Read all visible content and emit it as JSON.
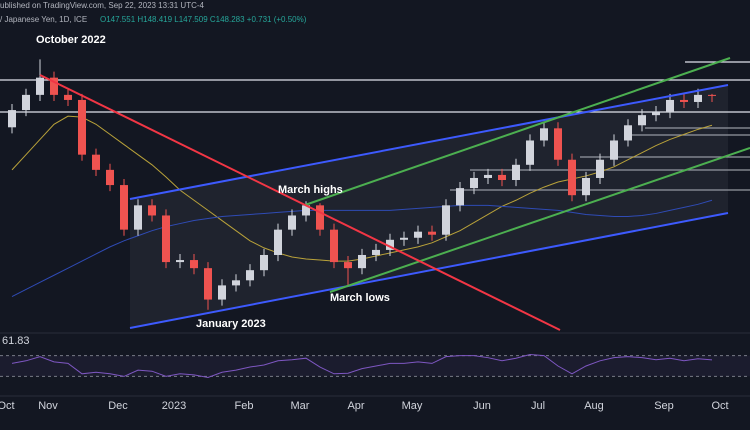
{
  "header": {
    "source": "ublished on TradingView.com, Sep 22, 2023 13:31 UTC-4",
    "symbol": "/ Japanese Yen, 1D, ICE",
    "ohlc": "O147.551 H148.419 L147.509 C148.283 +0.731 (+0.50%)"
  },
  "chart_data": {
    "type": "candlestick",
    "categories": [
      "Oct",
      null,
      null,
      "Nov",
      null,
      null,
      null,
      null,
      "Dec",
      null,
      null,
      null,
      "2023",
      null,
      null,
      null,
      null,
      "Feb",
      null,
      null,
      null,
      "Mar",
      null,
      null,
      null,
      "Apr",
      null,
      null,
      null,
      "May",
      null,
      null,
      null,
      null,
      "Jun",
      null,
      null,
      null,
      "Jul",
      null,
      null,
      null,
      "Aug",
      null,
      null,
      null,
      null,
      "Sep",
      null,
      null,
      null,
      "Oct",
      null
    ],
    "open": [
      145.2,
      146.9,
      148.4,
      150.1,
      148.4,
      147.9,
      142.5,
      141.0,
      139.5,
      135.1,
      137.5,
      136.5,
      131.9,
      132.1,
      131.3,
      128.2,
      129.6,
      130.1,
      131.1,
      132.6,
      135.1,
      136.5,
      137.5,
      135.1,
      131.9,
      131.3,
      132.6,
      133.1,
      134.1,
      134.3,
      134.9,
      134.6,
      137.5,
      139.2,
      140.2,
      140.5,
      140.0,
      141.5,
      143.9,
      145.1,
      142.0,
      138.5,
      140.2,
      142.0,
      143.9,
      145.4,
      146.4,
      146.7,
      147.9,
      147.7,
      148.4,
      null,
      null
    ],
    "high": [
      147.5,
      149.0,
      151.9,
      150.7,
      149.0,
      148.5,
      143.1,
      141.6,
      140.1,
      138.1,
      138.1,
      137.1,
      132.7,
      132.7,
      131.9,
      130.2,
      130.7,
      131.7,
      133.2,
      135.7,
      137.1,
      137.9,
      137.7,
      135.7,
      132.5,
      133.2,
      133.7,
      134.7,
      134.9,
      135.5,
      135.5,
      138.1,
      139.8,
      140.8,
      141.1,
      141.1,
      142.1,
      144.5,
      145.7,
      145.7,
      142.6,
      140.8,
      142.6,
      144.5,
      146.0,
      147.0,
      147.3,
      148.5,
      148.5,
      149.0,
      148.5,
      null,
      null
    ],
    "low": [
      144.6,
      146.3,
      147.8,
      147.8,
      147.3,
      141.9,
      140.4,
      138.9,
      134.5,
      134.5,
      135.9,
      131.3,
      131.3,
      130.7,
      127.2,
      127.6,
      129.0,
      129.5,
      130.5,
      132.0,
      134.5,
      135.9,
      134.5,
      131.3,
      129.6,
      130.7,
      132.0,
      132.5,
      133.5,
      133.7,
      134.0,
      134.0,
      136.9,
      138.6,
      139.6,
      139.4,
      139.4,
      140.9,
      143.3,
      141.4,
      137.9,
      137.9,
      139.6,
      141.4,
      143.3,
      144.8,
      145.8,
      146.1,
      147.1,
      147.1,
      147.7,
      null,
      null
    ],
    "close": [
      146.9,
      148.4,
      150.1,
      148.4,
      147.9,
      142.5,
      141.0,
      139.5,
      135.1,
      137.5,
      136.5,
      131.9,
      132.1,
      131.3,
      128.2,
      129.6,
      130.1,
      131.1,
      132.6,
      135.1,
      136.5,
      137.5,
      135.1,
      131.9,
      131.3,
      132.6,
      133.1,
      134.1,
      134.3,
      134.9,
      134.6,
      137.5,
      139.2,
      140.2,
      140.5,
      140.0,
      141.5,
      143.9,
      145.1,
      142.0,
      138.5,
      140.2,
      142.0,
      143.9,
      145.4,
      146.4,
      146.7,
      147.9,
      147.7,
      148.4,
      148.3,
      null,
      null
    ],
    "up_color": "#d1d4dc",
    "down_color": "#ef5350",
    "ylim": [
      125,
      155
    ],
    "overlays": [
      {
        "color": "#b9a23a",
        "values": [
          141,
          142.5,
          144,
          145.5,
          146.3,
          146.2,
          145.5,
          144.5,
          143.5,
          142.5,
          141.5,
          140.3,
          139,
          138,
          137,
          136,
          135,
          134,
          133.3,
          132.8,
          132.4,
          132.2,
          132.1,
          132,
          132,
          132.2,
          132.5,
          132.8,
          133.1,
          133.4,
          133.8,
          134.4,
          135,
          135.8,
          136.6,
          137.4,
          138,
          138.7,
          139.3,
          139.8,
          140.1,
          140.4,
          140.8,
          141.3,
          142,
          142.7,
          143.4,
          144,
          144.5,
          145,
          145.4,
          null,
          null
        ]
      },
      {
        "color": "#2f4bb5",
        "values": [
          128.5,
          129.2,
          129.9,
          130.6,
          131.3,
          132,
          132.7,
          133.4,
          134,
          134.5,
          135,
          135.4,
          135.7,
          136,
          136.2,
          136.4,
          136.5,
          136.6,
          136.7,
          136.8,
          136.9,
          137,
          137,
          137,
          137,
          137,
          137,
          137,
          137.1,
          137.2,
          137.3,
          137.4,
          137.5,
          137.5,
          137.5,
          137.4,
          137.3,
          137.2,
          137.1,
          137,
          136.8,
          136.6,
          136.5,
          136.4,
          136.4,
          136.5,
          136.7,
          137,
          137.3,
          137.6,
          138,
          null,
          null
        ]
      }
    ],
    "annotations": [
      "October 2022",
      "March highs",
      "March lows",
      "January 2023"
    ],
    "rsi": {
      "color": "#7e57c2",
      "ylim": [
        0,
        100
      ],
      "bands": [
        30,
        70
      ],
      "values": [
        55,
        60,
        68,
        58,
        55,
        35,
        38,
        35,
        30,
        42,
        40,
        30,
        35,
        33,
        28,
        38,
        42,
        48,
        52,
        60,
        62,
        65,
        48,
        35,
        36,
        45,
        50,
        55,
        55,
        58,
        55,
        68,
        70,
        70,
        66,
        60,
        65,
        72,
        70,
        50,
        35,
        50,
        60,
        66,
        68,
        66,
        62,
        65,
        60,
        64,
        61.83,
        null,
        null
      ]
    }
  }
}
